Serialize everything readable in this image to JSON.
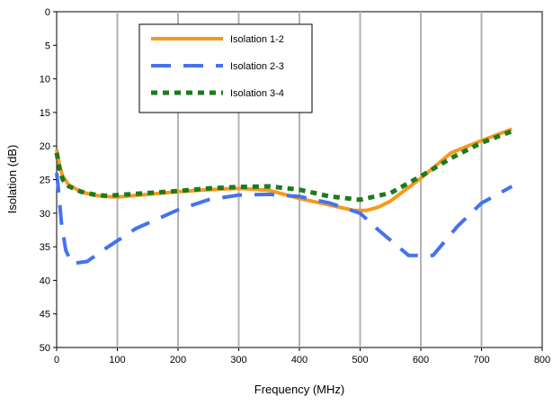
{
  "chart_data": {
    "type": "line",
    "title": "",
    "xlabel": "Frequency (MHz)",
    "ylabel": "Isolation (dB)",
    "xlim": [
      0,
      800
    ],
    "ylim": [
      0,
      50
    ],
    "y_inverted": true,
    "x_ticks": [
      0,
      100,
      200,
      300,
      400,
      500,
      600,
      700,
      800
    ],
    "y_ticks": [
      0,
      5,
      10,
      15,
      20,
      25,
      30,
      35,
      40,
      45,
      50
    ],
    "grid": "vertical",
    "legend_position": "top-left",
    "series": [
      {
        "name": "Isolation 1-2",
        "color": "#F59A1E",
        "style": "solid",
        "x": [
          0,
          5,
          10,
          20,
          40,
          60,
          80,
          100,
          150,
          200,
          250,
          300,
          350,
          400,
          450,
          490,
          510,
          530,
          550,
          600,
          650,
          700,
          750
        ],
        "y": [
          20.5,
          23.0,
          24.5,
          25.8,
          26.8,
          27.3,
          27.5,
          27.6,
          27.2,
          26.8,
          26.5,
          26.3,
          26.6,
          27.8,
          28.8,
          29.6,
          29.6,
          29.1,
          28.2,
          24.8,
          21.0,
          19.2,
          17.5
        ]
      },
      {
        "name": "Isolation 2-3",
        "color": "#4472F0",
        "style": "dashed",
        "x": [
          0,
          3,
          8,
          15,
          25,
          50,
          80,
          130,
          200,
          250,
          300,
          350,
          400,
          450,
          500,
          530,
          580,
          620,
          660,
          700,
          750
        ],
        "y": [
          24.0,
          26.5,
          31.5,
          35.5,
          37.5,
          37.2,
          35.3,
          32.3,
          29.5,
          28.0,
          27.3,
          27.2,
          27.5,
          28.5,
          30.0,
          32.5,
          36.3,
          36.3,
          32.0,
          28.5,
          26.0
        ]
      },
      {
        "name": "Isolation 3-4",
        "color": "#1E7A1E",
        "style": "dotted",
        "x": [
          0,
          5,
          10,
          20,
          40,
          60,
          80,
          100,
          150,
          200,
          250,
          300,
          350,
          400,
          450,
          500,
          550,
          600,
          650,
          700,
          750
        ],
        "y": [
          21.0,
          23.5,
          25.0,
          26.0,
          26.8,
          27.2,
          27.4,
          27.3,
          27.0,
          26.7,
          26.3,
          26.1,
          26.0,
          26.5,
          27.5,
          28.0,
          27.0,
          24.5,
          21.8,
          19.5,
          17.8
        ]
      }
    ]
  }
}
